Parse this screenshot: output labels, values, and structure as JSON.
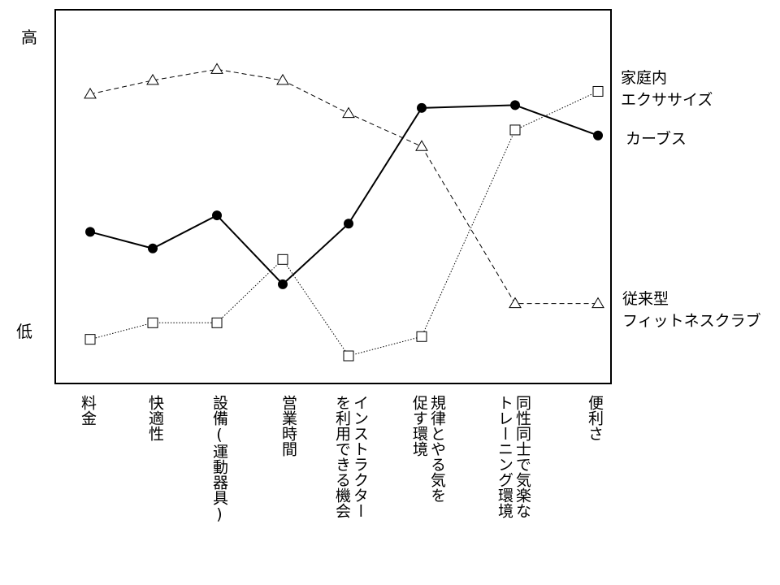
{
  "chart_data": {
    "type": "line",
    "categories": [
      "料金",
      "快適性",
      "設備(運動器具)",
      "営業時間",
      "インストラクター\nを利用できる機会",
      "規律とやる気を\n促す環境",
      "同性同士で気楽な\nトレーニング環境",
      "便利さ"
    ],
    "y_axis": {
      "top_label": "高",
      "bottom_label": "低"
    },
    "series": [
      {
        "name": "カーブス",
        "marker": "filled-circle",
        "line_style": "solid-bold",
        "color": "#000000",
        "values": [
          4.5,
          3.9,
          5.1,
          2.6,
          4.8,
          9.0,
          9.1,
          8.0
        ]
      },
      {
        "name": "家庭内\nエクササイズ",
        "marker": "open-square",
        "line_style": "dotted",
        "color": "#000000",
        "values": [
          0.6,
          1.2,
          1.2,
          3.5,
          0.0,
          0.7,
          8.2,
          9.6
        ]
      },
      {
        "name": "従来型\nフィットネスクラブ",
        "marker": "open-triangle",
        "line_style": "dashed",
        "color": "#000000",
        "values": [
          9.5,
          10.0,
          10.4,
          10.0,
          8.8,
          7.6,
          1.9,
          1.9
        ]
      }
    ],
    "ylim": [
      0,
      11
    ],
    "grid": false,
    "legend_placement": "right"
  }
}
